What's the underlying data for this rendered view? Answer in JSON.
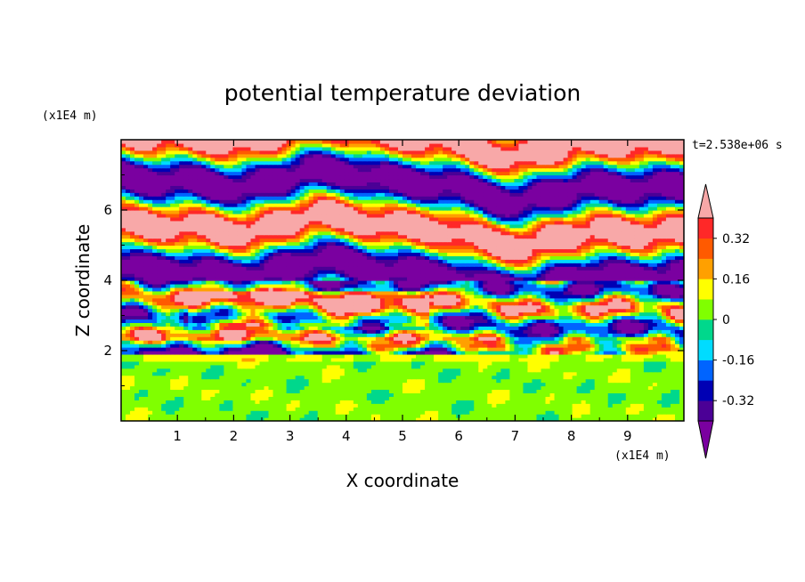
{
  "chart_data": {
    "type": "heatmap",
    "title": "potential temperature deviation",
    "xlabel": "X coordinate",
    "ylabel": "Z coordinate",
    "x_unit": "(x1E4 m)",
    "y_unit": "(x1E4 m)",
    "time_label": "t=2.538e+06 s",
    "xlim": [
      0,
      10
    ],
    "ylim": [
      0,
      8
    ],
    "x_ticks": [
      "1",
      "2",
      "3",
      "4",
      "5",
      "6",
      "7",
      "8",
      "9"
    ],
    "y_ticks": [
      "2",
      "4",
      "6"
    ],
    "colorbar": {
      "levels": [
        -0.4,
        -0.32,
        -0.24,
        -0.16,
        -0.08,
        0,
        0.08,
        0.16,
        0.24,
        0.32,
        0.4
      ],
      "tick_labels": [
        "0.32",
        "0.16",
        "0",
        "-0.16",
        "-0.32"
      ],
      "tick_values": [
        0.32,
        0.16,
        0,
        -0.16,
        -0.32
      ],
      "colors": [
        "#7a00a0",
        "#4b0096",
        "#0000b4",
        "#0064ff",
        "#00dcff",
        "#00d88c",
        "#80ff00",
        "#ffff00",
        "#ffa000",
        "#ff5a00",
        "#ff2828",
        "#f8a8a8"
      ],
      "extend": "both"
    },
    "bands": [
      {
        "z_range": [
          0,
          1.95
        ],
        "description": "near-zero deviation",
        "dominant_value": 0.04
      },
      {
        "z_range": [
          1.95,
          4.0
        ],
        "description": "mixed strong positive and negative",
        "dominant_value": 0.2
      },
      {
        "z_range": [
          4.0,
          8.0
        ],
        "description": "alternating layers",
        "dominant_value": 0.0
      }
    ]
  }
}
